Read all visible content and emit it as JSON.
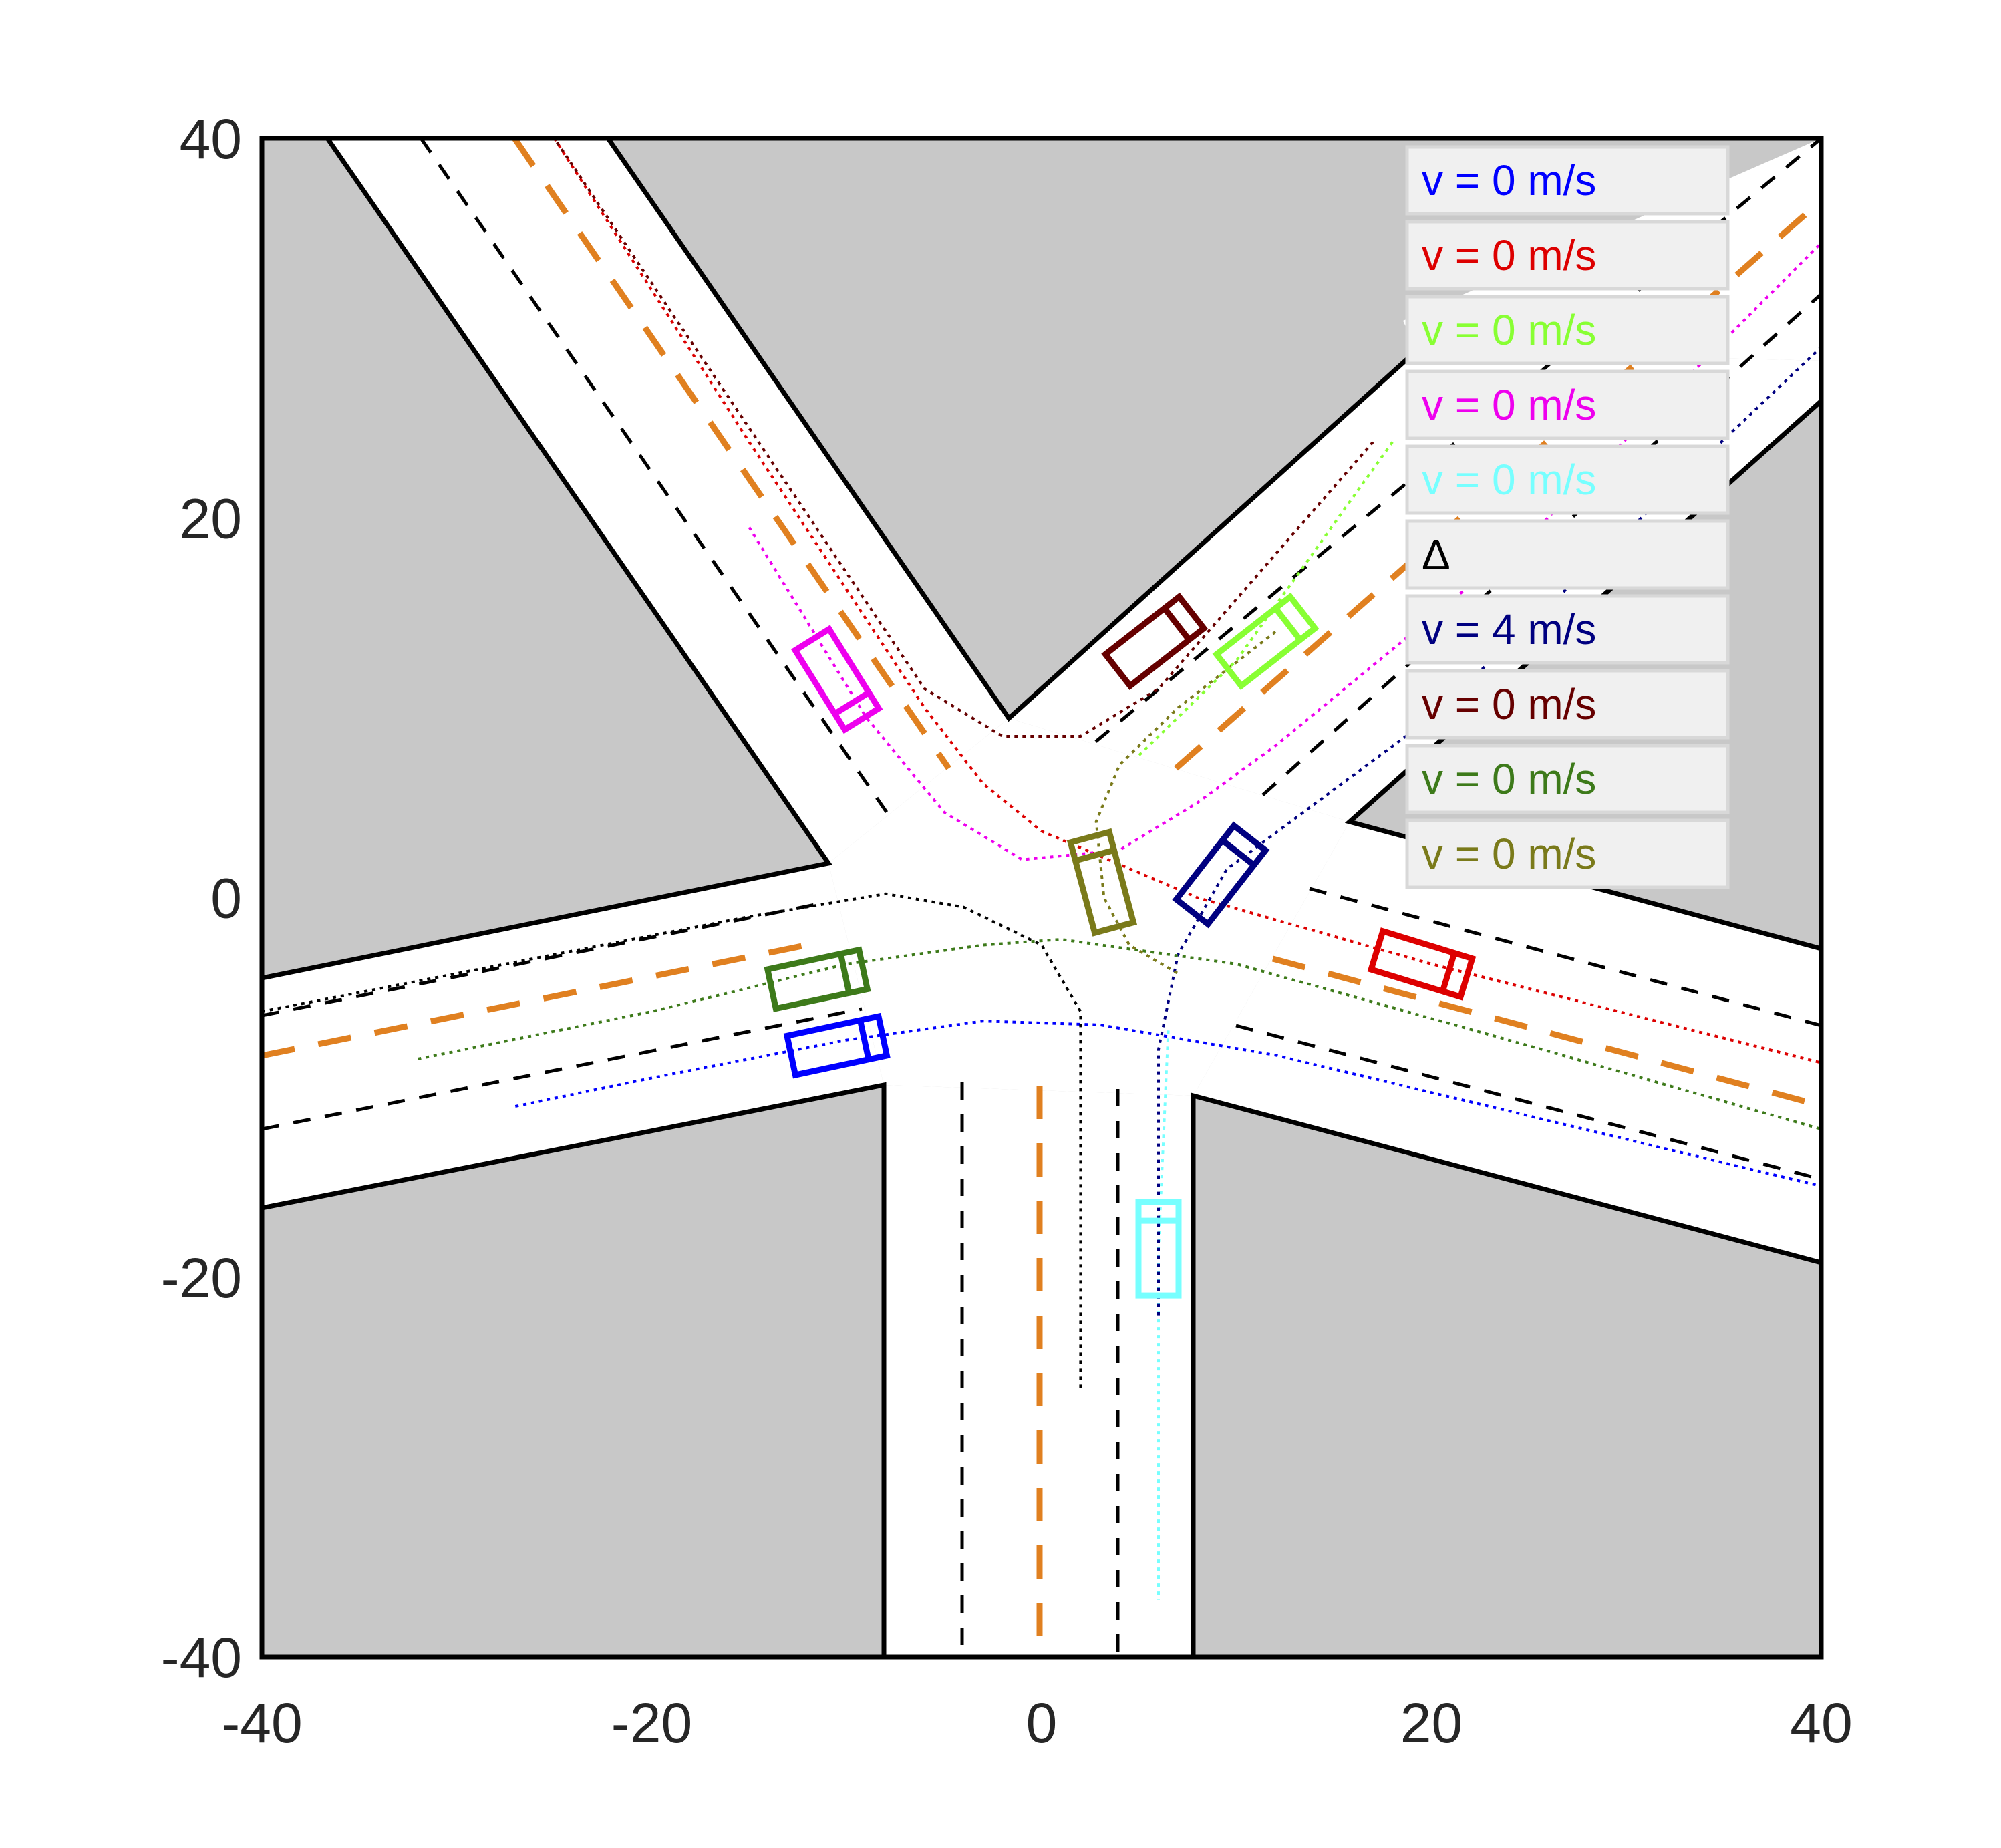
{
  "axes": {
    "xlim": [
      -40,
      40
    ],
    "ylim": [
      -40,
      40
    ],
    "x_ticks": [
      -40,
      -20,
      0,
      20,
      40
    ],
    "y_ticks": [
      -40,
      -20,
      0,
      20,
      40
    ],
    "x_tick_labels": [
      "-40",
      "-20",
      "0",
      "20",
      "40"
    ],
    "y_tick_labels": [
      "-40",
      "-20",
      "0",
      "20",
      "40"
    ],
    "background_color": "#c8c8c8",
    "road_color": "#ffffff",
    "edge_color": "#000000",
    "center_line_color": "#e08020"
  },
  "legend": {
    "entries": [
      {
        "label": "v = 0 m/s",
        "color": "#0000ff"
      },
      {
        "label": "v = 0 m/s",
        "color": "#dd0000"
      },
      {
        "label": "v = 0 m/s",
        "color": "#88ff33"
      },
      {
        "label": "v = 0 m/s",
        "color": "#ee00ee"
      },
      {
        "label": "v = 0 m/s",
        "color": "#77ffff"
      },
      {
        "label": "Δ",
        "color": "#000000"
      },
      {
        "label": "v = 4 m/s",
        "color": "#000080"
      },
      {
        "label": "v = 0 m/s",
        "color": "#660000"
      },
      {
        "label": "v = 0 m/s",
        "color": "#3d7a1a"
      },
      {
        "label": "v = 0 m/s",
        "color": "#7a7a1a"
      }
    ]
  },
  "chart_data": {
    "type": "scatter",
    "xlim": [
      -40,
      40
    ],
    "ylim": [
      -40,
      40
    ],
    "grid": false,
    "legend_placement": "top-right",
    "vehicles": [
      {
        "color": "#0000ff",
        "x": -10.5,
        "y": -7.8,
        "heading_deg": 12
      },
      {
        "color": "#dd0000",
        "x": 19.5,
        "y": -3.5,
        "heading_deg": -17
      },
      {
        "color": "#88ff33",
        "x": 11.5,
        "y": 13.5,
        "heading_deg": 38
      },
      {
        "color": "#ee00ee",
        "x": -10.5,
        "y": 11.5,
        "heading_deg": -58
      },
      {
        "color": "#77ffff",
        "x": 6,
        "y": -18.5,
        "heading_deg": 90
      },
      {
        "color": "#000080",
        "x": 9.2,
        "y": 1.2,
        "heading_deg": 52
      },
      {
        "color": "#660000",
        "x": 5.8,
        "y": 13.5,
        "heading_deg": 38
      },
      {
        "color": "#3d7a1a",
        "x": -11.5,
        "y": -4.3,
        "heading_deg": 12
      },
      {
        "color": "#7a7a1a",
        "x": 3.1,
        "y": 0.8,
        "heading_deg": 105
      }
    ],
    "paths": [
      {
        "color": "#0000ff",
        "points": [
          [
            -27,
            -11
          ],
          [
            -20,
            -9.5
          ],
          [
            -10,
            -7.5
          ],
          [
            -3,
            -6.5
          ],
          [
            3,
            -6.7
          ],
          [
            12,
            -8.3
          ],
          [
            25,
            -11.5
          ],
          [
            40,
            -15.2
          ]
        ]
      },
      {
        "color": "#dd0000",
        "points": [
          [
            -25,
            40
          ],
          [
            -15,
            24
          ],
          [
            -6,
            10
          ],
          [
            -3,
            6
          ],
          [
            0,
            3.5
          ],
          [
            8,
            0
          ],
          [
            20,
            -3.5
          ],
          [
            40,
            -8.7
          ]
        ]
      },
      {
        "color": "#88ff33",
        "points": [
          [
            18,
            24
          ],
          [
            10,
            12.5
          ],
          [
            5,
            7.5
          ]
        ]
      },
      {
        "color": "#ee00ee",
        "points": [
          [
            -15,
            19.5
          ],
          [
            -9,
            9.5
          ],
          [
            -5,
            4.5
          ],
          [
            -1,
            2
          ],
          [
            4,
            2.5
          ],
          [
            8,
            5
          ],
          [
            12,
            8
          ],
          [
            25,
            19
          ],
          [
            40,
            34.5
          ]
        ]
      },
      {
        "color": "#77ffff",
        "points": [
          [
            6.5,
            -7
          ],
          [
            6,
            -18.5
          ],
          [
            6,
            -37
          ]
        ]
      },
      {
        "color": "#000000",
        "points": [
          [
            -40,
            -6
          ],
          [
            -25,
            -3
          ],
          [
            -15,
            -1
          ],
          [
            -8,
            0.2
          ],
          [
            -4,
            -0.5
          ],
          [
            0,
            -2.5
          ],
          [
            2,
            -6
          ],
          [
            2,
            -26
          ]
        ]
      },
      {
        "color": "#000080",
        "points": [
          [
            6,
            -22
          ],
          [
            6,
            -8
          ],
          [
            7,
            -3
          ],
          [
            9.5,
            1.5
          ],
          [
            20,
            9.5
          ],
          [
            40,
            29
          ]
        ]
      },
      {
        "color": "#660000",
        "points": [
          [
            17,
            24
          ],
          [
            6,
            11
          ],
          [
            2,
            8.5
          ],
          [
            -2,
            8.5
          ],
          [
            -6,
            11
          ],
          [
            -25,
            40
          ]
        ]
      },
      {
        "color": "#3d7a1a",
        "points": [
          [
            -32,
            -8.5
          ],
          [
            -20,
            -6
          ],
          [
            -10,
            -3.5
          ],
          [
            -3,
            -2.5
          ],
          [
            1,
            -2.2
          ],
          [
            10,
            -3.5
          ],
          [
            25,
            -7.8
          ],
          [
            40,
            -12.2
          ]
        ]
      },
      {
        "color": "#7a7a1a",
        "points": [
          [
            12,
            14
          ],
          [
            7,
            10
          ],
          [
            4,
            7
          ],
          [
            2.8,
            4
          ],
          [
            3.2,
            0
          ],
          [
            4.5,
            -2.5
          ],
          [
            7,
            -4
          ]
        ]
      }
    ]
  }
}
